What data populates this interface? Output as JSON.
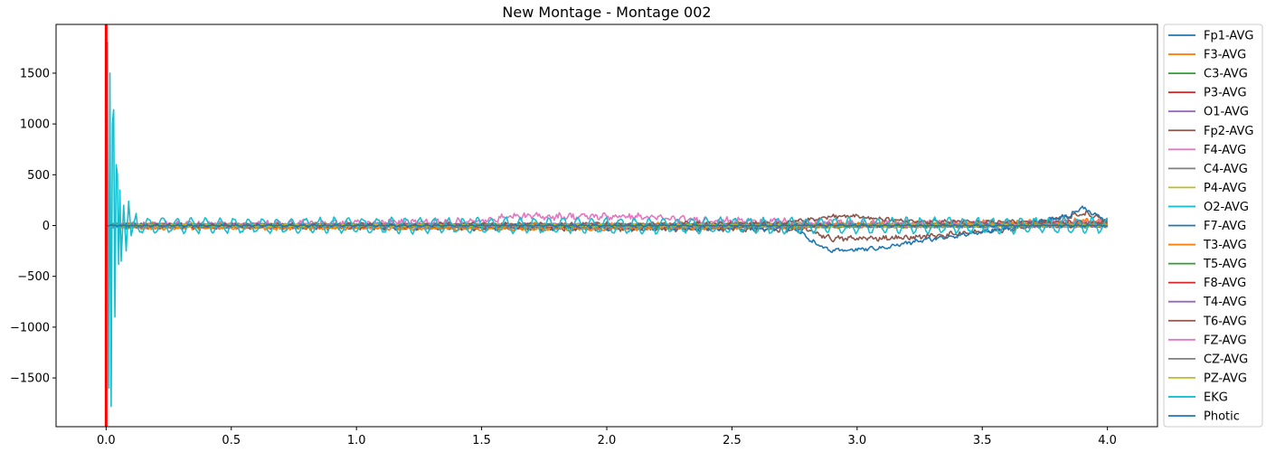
{
  "chart_data": {
    "type": "line",
    "title": "New Montage - Montage 002",
    "xlabel": "",
    "ylabel": "",
    "xlim": [
      -0.2,
      4.2
    ],
    "ylim": [
      -1980,
      1980
    ],
    "x_ticks": [
      0.0,
      0.5,
      1.0,
      1.5,
      2.0,
      2.5,
      3.0,
      3.5,
      4.0
    ],
    "x_tick_labels": [
      "0.0",
      "0.5",
      "1.0",
      "1.5",
      "2.0",
      "2.5",
      "3.0",
      "3.5",
      "4.0"
    ],
    "y_ticks": [
      -1500,
      -1000,
      -500,
      0,
      500,
      1000,
      1500
    ],
    "y_tick_labels": [
      "−1500",
      "−1000",
      "−500",
      "0",
      "500",
      "1000",
      "1500"
    ],
    "grid": false,
    "legend_position": "outside-right",
    "vertical_marker": {
      "x": 0.0,
      "color": "#ff0000"
    },
    "series": [
      {
        "name": "Fp1-AVG",
        "color": "#1f77b4",
        "base": [
          [
            0,
            0
          ],
          [
            4,
            0
          ]
        ],
        "noise": 15
      },
      {
        "name": "F3-AVG",
        "color": "#ff7f0e",
        "base": [
          [
            0,
            0
          ],
          [
            1.5,
            -10
          ],
          [
            3.5,
            20
          ],
          [
            4,
            40
          ]
        ],
        "noise": 25
      },
      {
        "name": "C3-AVG",
        "color": "#2ca02c",
        "base": [
          [
            0,
            0
          ],
          [
            4,
            0
          ]
        ],
        "noise": 15
      },
      {
        "name": "P3-AVG",
        "color": "#d62728",
        "base": [
          [
            0,
            0
          ],
          [
            4,
            0
          ]
        ],
        "noise": 15
      },
      {
        "name": "O1-AVG",
        "color": "#9467bd",
        "base": [
          [
            0,
            0
          ],
          [
            4,
            0
          ]
        ],
        "noise": 15
      },
      {
        "name": "Fp2-AVG",
        "color": "#8c564b",
        "base": [
          [
            0,
            0
          ],
          [
            2.8,
            -40
          ],
          [
            2.9,
            -130
          ],
          [
            3.2,
            -120
          ],
          [
            3.6,
            -40
          ],
          [
            3.9,
            120
          ],
          [
            4,
            60
          ]
        ],
        "noise": 20
      },
      {
        "name": "F4-AVG",
        "color": "#e377c2",
        "base": [
          [
            0,
            0
          ],
          [
            1.5,
            40
          ],
          [
            1.6,
            90
          ],
          [
            2.1,
            90
          ],
          [
            2.3,
            60
          ],
          [
            3,
            20
          ],
          [
            4,
            30
          ]
        ],
        "noise": 25
      },
      {
        "name": "C4-AVG",
        "color": "#7f7f7f",
        "base": [
          [
            0,
            0
          ],
          [
            4,
            0
          ]
        ],
        "noise": 15
      },
      {
        "name": "P4-AVG",
        "color": "#bcbd22",
        "base": [
          [
            0,
            0
          ],
          [
            4,
            0
          ]
        ],
        "noise": 15
      },
      {
        "name": "O2-AVG",
        "color": "#17becf",
        "base": [
          [
            0,
            0
          ],
          [
            4,
            0
          ]
        ],
        "noise": 15
      },
      {
        "name": "F7-AVG",
        "color": "#1f77b4",
        "base": [
          [
            0,
            0
          ],
          [
            2.75,
            -30
          ],
          [
            2.85,
            -200
          ],
          [
            2.9,
            -250
          ],
          [
            3.1,
            -220
          ],
          [
            3.25,
            -150
          ],
          [
            3.6,
            -30
          ],
          [
            3.85,
            100
          ],
          [
            3.9,
            180
          ],
          [
            4,
            40
          ]
        ],
        "noise": 15
      },
      {
        "name": "T3-AVG",
        "color": "#ff7f0e",
        "base": [
          [
            0,
            -20
          ],
          [
            2,
            -30
          ],
          [
            4,
            20
          ]
        ],
        "noise": 15
      },
      {
        "name": "T5-AVG",
        "color": "#2ca02c",
        "base": [
          [
            0,
            0
          ],
          [
            4,
            0
          ]
        ],
        "noise": 15
      },
      {
        "name": "F8-AVG",
        "color": "#d62728",
        "base": [
          [
            0,
            0
          ],
          [
            4,
            0
          ]
        ],
        "noise": 15
      },
      {
        "name": "T4-AVG",
        "color": "#9467bd",
        "base": [
          [
            0,
            0
          ],
          [
            4,
            0
          ]
        ],
        "noise": 15
      },
      {
        "name": "T6-AVG",
        "color": "#8c564b",
        "base": [
          [
            0,
            0
          ],
          [
            2.7,
            20
          ],
          [
            2.9,
            90
          ],
          [
            3.0,
            90
          ],
          [
            3.2,
            40
          ],
          [
            4,
            30
          ]
        ],
        "noise": 15
      },
      {
        "name": "FZ-AVG",
        "color": "#e377c2",
        "base": [
          [
            0,
            0
          ],
          [
            4,
            0
          ]
        ],
        "noise": 15
      },
      {
        "name": "CZ-AVG",
        "color": "#7f7f7f",
        "base": [
          [
            0,
            0
          ],
          [
            4,
            0
          ]
        ],
        "noise": 10
      },
      {
        "name": "PZ-AVG",
        "color": "#bcbd22",
        "base": [
          [
            0,
            0
          ],
          [
            4,
            0
          ]
        ],
        "noise": 10
      },
      {
        "name": "EKG",
        "color": "#17becf",
        "base": [
          [
            0,
            0
          ],
          [
            4,
            0
          ]
        ],
        "noise": 0,
        "oscillation": 70,
        "burst": [
          [
            0.0,
            -1550
          ],
          [
            0.005,
            1800
          ],
          [
            0.01,
            -1600
          ],
          [
            0.015,
            1500
          ],
          [
            0.02,
            -1780
          ],
          [
            0.025,
            1000
          ],
          [
            0.03,
            1140
          ],
          [
            0.035,
            -900
          ],
          [
            0.04,
            600
          ],
          [
            0.045,
            500
          ],
          [
            0.05,
            -380
          ],
          [
            0.055,
            350
          ],
          [
            0.06,
            -350
          ],
          [
            0.07,
            200
          ],
          [
            0.08,
            -250
          ],
          [
            0.09,
            240
          ],
          [
            0.1,
            -100
          ],
          [
            0.12,
            120
          ]
        ]
      },
      {
        "name": "Photic",
        "color": "#1f77b4",
        "base": [
          [
            0,
            0
          ],
          [
            4,
            0
          ]
        ],
        "noise": 5
      }
    ]
  }
}
